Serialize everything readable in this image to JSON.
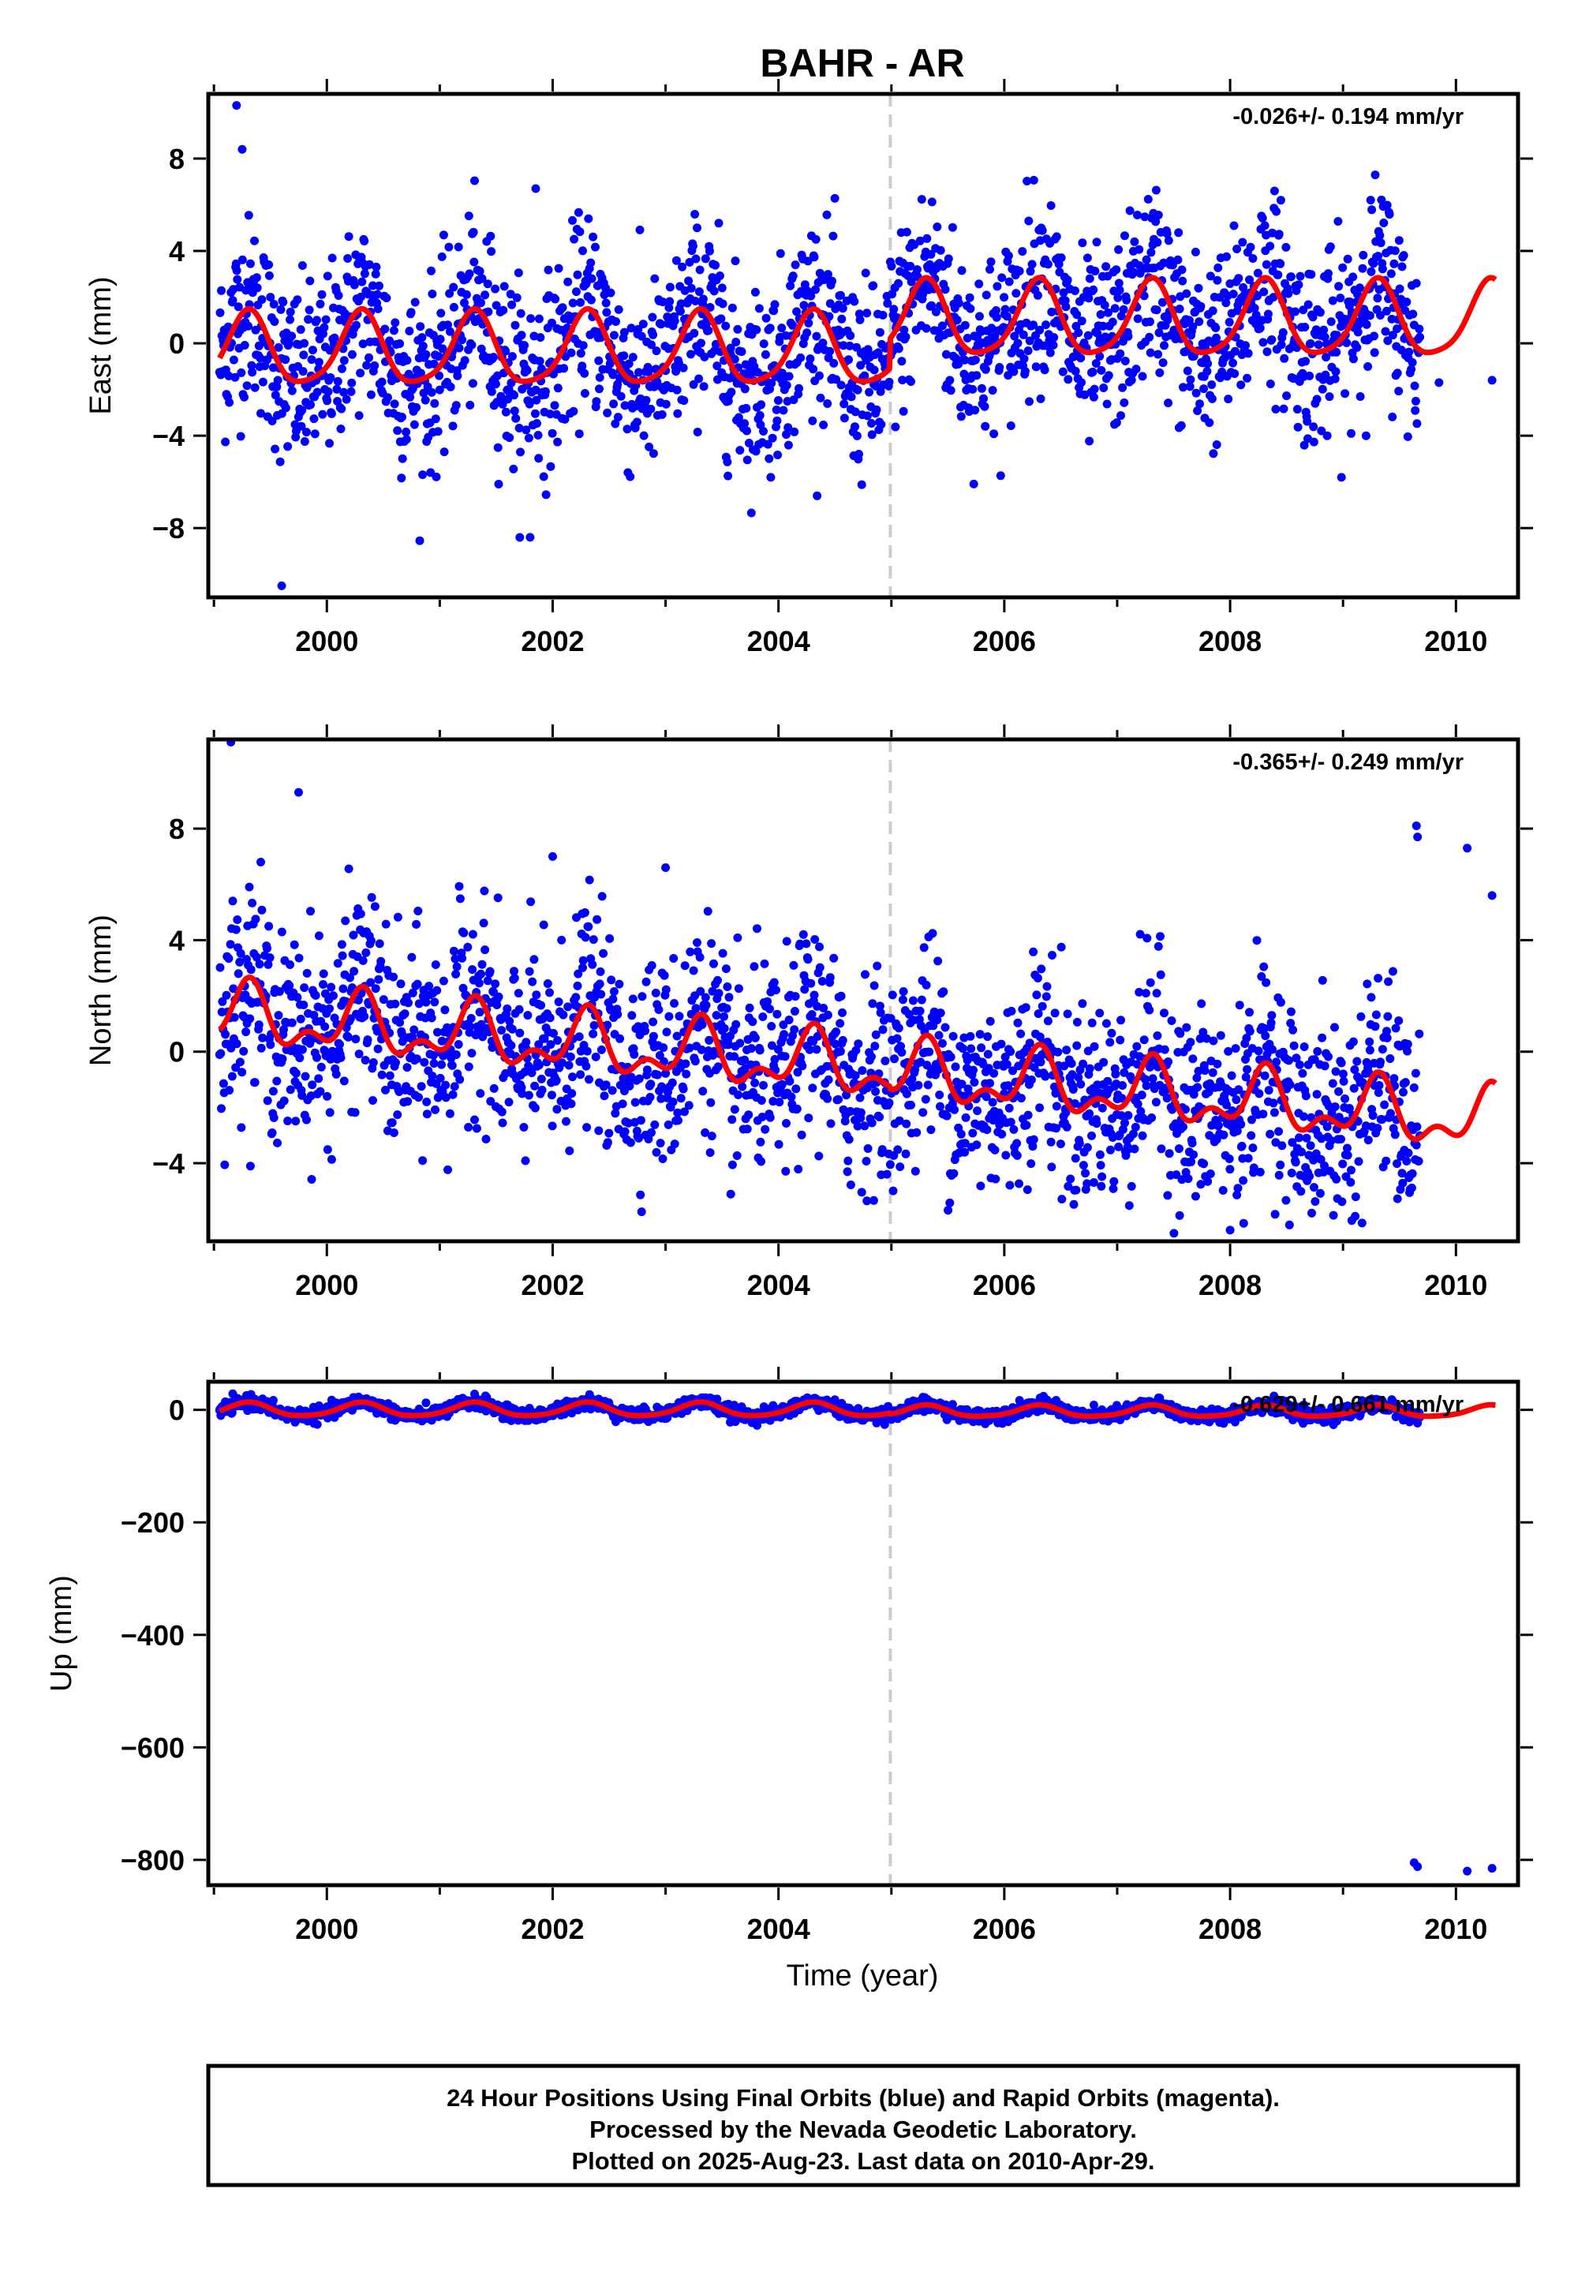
{
  "title": "BAHR - AR",
  "colors": {
    "final_orbits": "#0000ff",
    "model": "#ff0000",
    "offset_line": "#cccccc",
    "frame": "#000000",
    "background": "#ffffff"
  },
  "xlabel": "Time (year)",
  "footnote": {
    "line1": "24 Hour Positions Using Final Orbits (blue) and Rapid Orbits (magenta).",
    "line2": "Processed by the Nevada Geodetic Laboratory.",
    "line3": "Plotted on 2025-Aug-23. Last data on 2010-Apr-29."
  },
  "chart_data": [
    {
      "type": "scatter",
      "name": "east",
      "ylabel": "East (mm)",
      "rate_label": "-0.026+/- 0.194 mm/yr",
      "xlim": [
        1998.95,
        2010.55
      ],
      "ylim": [
        -11,
        10.8
      ],
      "x_ticks": [
        2000,
        2002,
        2004,
        2006,
        2008,
        2010
      ],
      "y_ticks": [
        -8,
        -4,
        0,
        4,
        8
      ],
      "grid": false,
      "offset_epoch": 2004.99,
      "model": {
        "segments": [
          {
            "x0": 1999.05,
            "x1": 2004.99,
            "offset": -0.35,
            "slope": 0.0,
            "annual_amp": 1.55,
            "semiannual_amp": 0.3
          },
          {
            "x0": 2004.99,
            "x1": 2010.35,
            "offset": 0.95,
            "slope": 0.0,
            "annual_amp": 1.6,
            "semiannual_amp": 0.3
          }
        ]
      },
      "scatter": {
        "x_start": 1999.05,
        "x_end": 2009.68,
        "noise": 2.0
      },
      "late_points": [
        {
          "x": 2009.85,
          "y": -1.7
        },
        {
          "x": 2010.32,
          "y": -1.6
        }
      ],
      "outliers": [
        {
          "x": 1999.2,
          "y": 10.3
        },
        {
          "x": 1999.25,
          "y": 8.4
        },
        {
          "x": 1999.6,
          "y": -10.5
        },
        {
          "x": 2001.8,
          "y": -8.4
        },
        {
          "x": 2001.85,
          "y": 6.7
        }
      ]
    },
    {
      "type": "scatter",
      "name": "north",
      "ylabel": "North (mm)",
      "rate_label": "-0.365+/- 0.249 mm/yr",
      "xlim": [
        1998.95,
        2010.55
      ],
      "ylim": [
        -6.8,
        11.2
      ],
      "x_ticks": [
        2000,
        2002,
        2004,
        2006,
        2008,
        2010
      ],
      "y_ticks": [
        -4,
        0,
        4,
        8
      ],
      "grid": false,
      "offset_epoch": 2004.99,
      "model": {
        "segments": [
          {
            "x0": 1999.05,
            "x1": 2004.99,
            "offset": 1.0,
            "slope": -0.33,
            "annual_amp": 0.9,
            "semiannual_amp": 0.55
          },
          {
            "x0": 2004.99,
            "x1": 2010.35,
            "offset": 0.9,
            "slope": -0.33,
            "annual_amp": 0.9,
            "semiannual_amp": 0.55
          }
        ]
      },
      "scatter": {
        "x_start": 1999.05,
        "x_end": 2009.68,
        "noise": 1.8
      },
      "late_points": [
        {
          "x": 2009.65,
          "y": 8.1
        },
        {
          "x": 2009.66,
          "y": 7.7
        },
        {
          "x": 2010.1,
          "y": 7.3
        },
        {
          "x": 2010.32,
          "y": 5.6
        }
      ],
      "outliers": [
        {
          "x": 1999.15,
          "y": 11.1
        },
        {
          "x": 1999.75,
          "y": 9.3
        },
        {
          "x": 2002.0,
          "y": 7.0
        },
        {
          "x": 2003.0,
          "y": 6.6
        },
        {
          "x": 2008.0,
          "y": -6.4
        }
      ]
    },
    {
      "type": "scatter",
      "name": "up",
      "ylabel": "Up (mm)",
      "rate_label": "-0.629+/- 0.661 mm/yr",
      "xlim": [
        1998.95,
        2010.55
      ],
      "ylim": [
        -845,
        50
      ],
      "x_ticks": [
        2000,
        2002,
        2004,
        2006,
        2008,
        2010
      ],
      "y_ticks": [
        -800,
        -600,
        -400,
        -200,
        0
      ],
      "grid": false,
      "offset_epoch": 2004.99,
      "model": {
        "segments": [
          {
            "x0": 1999.05,
            "x1": 2004.99,
            "offset": 0.0,
            "slope": 0.0,
            "annual_amp": 12,
            "semiannual_amp": 2
          },
          {
            "x0": 2004.99,
            "x1": 2010.35,
            "offset": -3.0,
            "slope": 0.0,
            "annual_amp": 10,
            "semiannual_amp": 2
          }
        ]
      },
      "scatter": {
        "x_start": 1999.05,
        "x_end": 2009.68,
        "noise": 6
      },
      "late_points": [
        {
          "x": 2009.63,
          "y": -805
        },
        {
          "x": 2009.66,
          "y": -812
        },
        {
          "x": 2010.1,
          "y": -820
        },
        {
          "x": 2010.32,
          "y": -815
        }
      ],
      "outliers": []
    }
  ]
}
